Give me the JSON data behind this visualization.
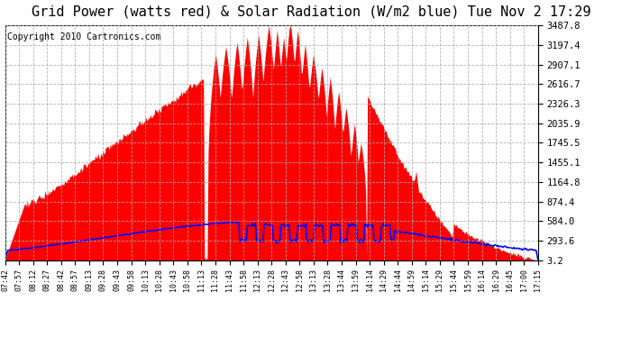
{
  "title": "Grid Power (watts red) & Solar Radiation (W/m2 blue) Tue Nov 2 17:29",
  "copyright": "Copyright 2010 Cartronics.com",
  "yticks": [
    3.2,
    293.6,
    584.0,
    874.4,
    1164.8,
    1455.1,
    1745.5,
    2035.9,
    2326.3,
    2616.7,
    2907.1,
    3197.4,
    3487.8
  ],
  "xtick_labels": [
    "07:42",
    "07:57",
    "08:12",
    "08:27",
    "08:42",
    "08:57",
    "09:13",
    "09:28",
    "09:43",
    "09:58",
    "10:13",
    "10:28",
    "10:43",
    "10:58",
    "11:13",
    "11:28",
    "11:43",
    "11:58",
    "12:13",
    "12:28",
    "12:43",
    "12:58",
    "13:13",
    "13:28",
    "13:44",
    "13:59",
    "14:14",
    "14:29",
    "14:44",
    "14:59",
    "15:14",
    "15:29",
    "15:44",
    "15:59",
    "16:14",
    "16:29",
    "16:45",
    "17:00",
    "17:15"
  ],
  "ymin": 3.2,
  "ymax": 3487.8,
  "background_color": "#ffffff",
  "fill_color": "#ff0000",
  "line_color": "#0000ff",
  "grid_color": "#aaaaaa",
  "title_fontsize": 11,
  "copyright_fontsize": 7
}
